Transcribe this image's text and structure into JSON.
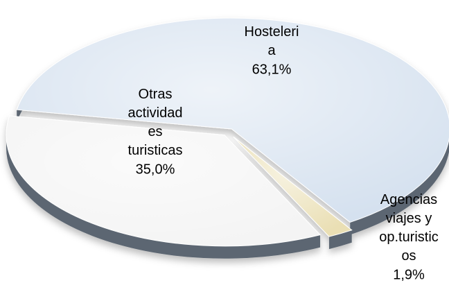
{
  "chart_data": {
    "type": "pie",
    "categories": [
      "Hosteleria",
      "Agencias viajes y op.turisticos",
      "Otras actividades turisticas"
    ],
    "values": [
      63.1,
      1.9,
      35.0
    ],
    "value_labels": [
      "63,1%",
      "1,9%",
      "35,0%"
    ],
    "colors": [
      "#d5e1ef",
      "#eadfb4",
      "#f4f4f4"
    ]
  }
}
